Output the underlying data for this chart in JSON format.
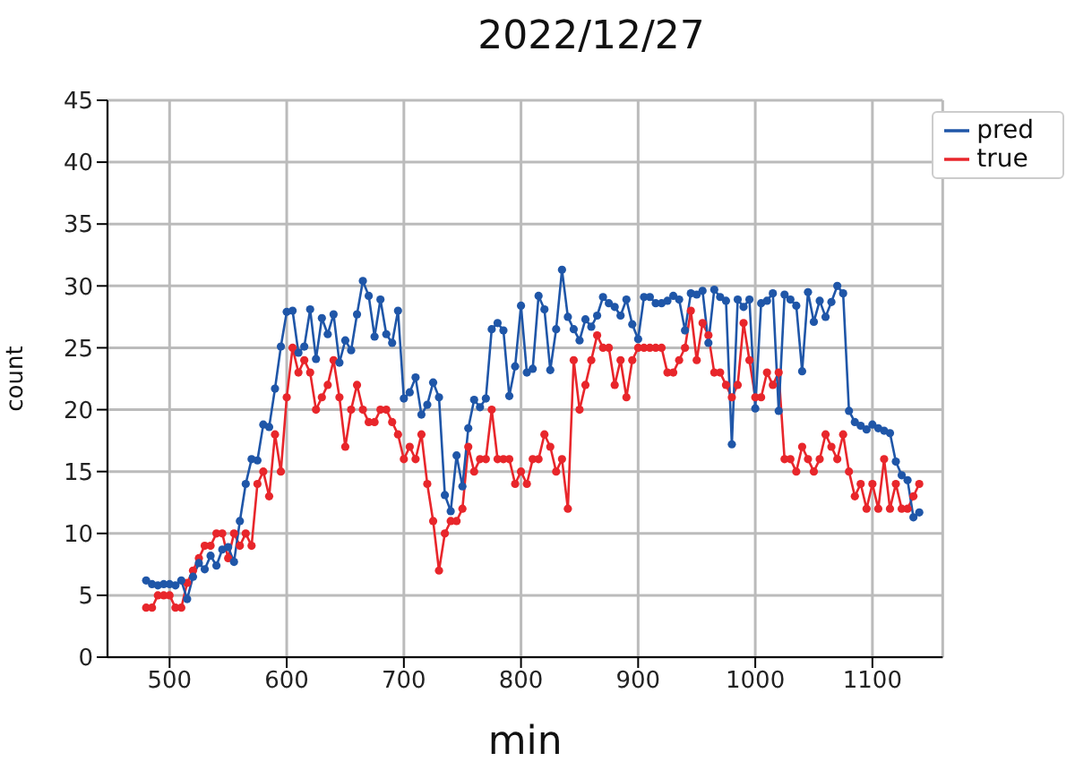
{
  "chart_data": {
    "type": "line",
    "title": "2022/12/27",
    "xlabel": "min",
    "ylabel": "count",
    "x": [
      480,
      485,
      490,
      495,
      500,
      505,
      510,
      515,
      520,
      525,
      530,
      535,
      540,
      545,
      550,
      555,
      560,
      565,
      570,
      575,
      580,
      585,
      590,
      595,
      600,
      605,
      610,
      615,
      620,
      625,
      630,
      635,
      640,
      645,
      650,
      655,
      660,
      665,
      670,
      675,
      680,
      685,
      690,
      695,
      700,
      705,
      710,
      715,
      720,
      725,
      730,
      735,
      740,
      745,
      750,
      755,
      760,
      765,
      770,
      775,
      780,
      785,
      790,
      795,
      800,
      805,
      810,
      815,
      820,
      825,
      830,
      835,
      840,
      845,
      850,
      855,
      860,
      865,
      870,
      875,
      880,
      885,
      890,
      895,
      900,
      905,
      910,
      915,
      920,
      925,
      930,
      935,
      940,
      945,
      950,
      955,
      960,
      965,
      970,
      975,
      980,
      985,
      990,
      995,
      1000,
      1005,
      1010,
      1015,
      1020,
      1025,
      1030,
      1035,
      1040,
      1045,
      1050,
      1055,
      1060,
      1065,
      1070,
      1075,
      1080,
      1085,
      1090,
      1095,
      1100,
      1105,
      1110,
      1115,
      1120,
      1125,
      1130,
      1135,
      1140
    ],
    "series": [
      {
        "name": "true",
        "color": "#e8262b",
        "values": [
          4,
          4,
          5,
          5,
          5,
          4,
          4,
          6,
          7,
          8,
          9,
          9,
          10,
          10,
          8,
          10,
          9,
          10,
          9,
          14,
          15,
          13,
          18,
          15,
          21,
          25,
          23,
          24,
          23,
          20,
          21,
          22,
          24,
          21,
          17,
          20,
          22,
          20,
          19,
          19,
          20,
          20,
          19,
          18,
          16,
          17,
          16,
          18,
          14,
          11,
          7,
          10,
          11,
          11,
          12,
          17,
          15,
          16,
          16,
          20,
          16,
          16,
          16,
          14,
          15,
          14,
          16,
          16,
          18,
          17,
          15,
          16,
          12,
          24,
          20,
          22,
          24,
          26,
          25,
          25,
          22,
          24,
          21,
          24,
          25,
          25,
          25,
          25,
          25,
          23,
          23,
          24,
          25,
          28,
          24,
          27,
          26,
          23,
          23,
          22,
          21,
          22,
          27,
          24,
          21,
          21,
          23,
          22,
          23,
          16,
          16,
          15,
          17,
          16,
          15,
          16,
          18,
          17,
          16,
          18,
          15,
          13,
          14,
          12,
          14,
          12,
          16,
          12,
          14,
          12,
          12,
          13,
          14
        ]
      },
      {
        "name": "pred",
        "color": "#1f56a8",
        "values": [
          6.2,
          5.9,
          5.8,
          5.9,
          5.9,
          5.8,
          6.2,
          4.7,
          6.5,
          7.6,
          7.1,
          8.2,
          7.4,
          8.7,
          8.9,
          7.7,
          11.0,
          14.0,
          16.0,
          15.9,
          18.8,
          18.6,
          21.7,
          25.1,
          27.9,
          28.0,
          24.6,
          25.1,
          28.1,
          24.1,
          27.4,
          26.1,
          27.7,
          23.8,
          25.6,
          24.8,
          27.7,
          30.4,
          29.2,
          25.9,
          28.9,
          26.1,
          25.4,
          28.0,
          20.9,
          21.4,
          22.6,
          19.6,
          20.4,
          22.2,
          21.0,
          13.1,
          11.8,
          16.3,
          13.8,
          18.5,
          20.8,
          20.2,
          20.9,
          26.5,
          27.0,
          26.4,
          21.1,
          23.5,
          28.4,
          23.0,
          23.3,
          29.2,
          28.1,
          23.2,
          26.5,
          31.3,
          27.5,
          26.5,
          25.6,
          27.3,
          26.7,
          27.6,
          29.1,
          28.6,
          28.3,
          27.6,
          28.9,
          26.9,
          25.7,
          29.1,
          29.1,
          28.6,
          28.6,
          28.8,
          29.2,
          28.9,
          26.4,
          29.4,
          29.3,
          29.6,
          25.4,
          29.7,
          29.1,
          28.8,
          17.2,
          28.9,
          28.3,
          28.9,
          20.1,
          28.6,
          28.8,
          29.4,
          19.9,
          29.3,
          28.9,
          28.4,
          23.1,
          29.5,
          27.1,
          28.8,
          27.5,
          28.7,
          30.0,
          29.4,
          19.9,
          19.0,
          18.7,
          18.4,
          18.8,
          18.5,
          18.3,
          18.1,
          15.8,
          14.7,
          14.3,
          11.3,
          11.7
        ]
      }
    ],
    "xlim": [
      447,
      1160
    ],
    "xticks": [
      500,
      600,
      700,
      800,
      900,
      1000,
      1100
    ],
    "ylim": [
      0,
      45
    ],
    "yticks": [
      0,
      5,
      10,
      15,
      20,
      25,
      30,
      35,
      40,
      45
    ],
    "grid": true,
    "legend": "top right",
    "marker": "circle",
    "line_style": "solid"
  }
}
